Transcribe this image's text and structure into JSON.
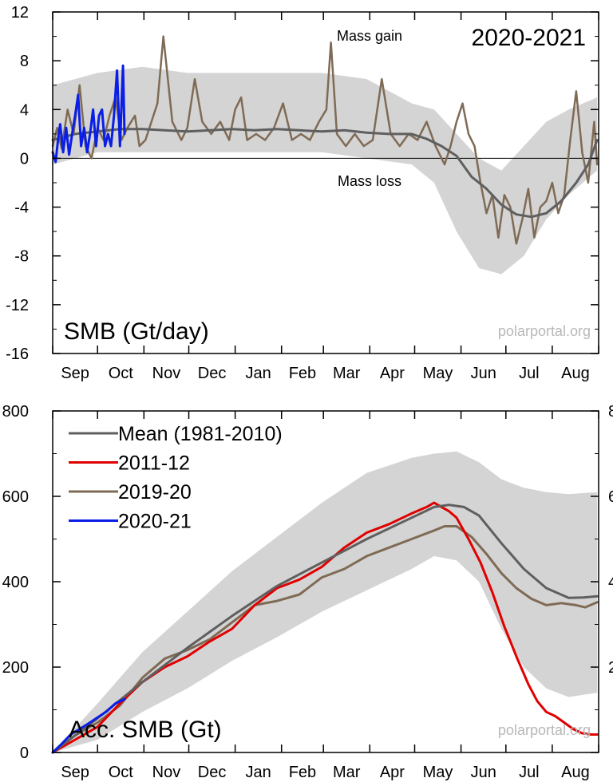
{
  "chart_data": [
    {
      "type": "line",
      "title": "2020-2021",
      "ylabel": "SMB (Gt/day)",
      "watermark": "polarportal.org",
      "annotations": [
        "Mass gain",
        "Mass loss"
      ],
      "ylim": [
        -16,
        12
      ],
      "yticks": [
        12,
        8,
        4,
        0,
        -4,
        -8,
        -12,
        -16
      ],
      "yticklabels": [
        "12",
        "8",
        "4",
        "0",
        "-4",
        "-8",
        "-12",
        "-16"
      ],
      "months": [
        "Sep",
        "Oct",
        "Nov",
        "Dec",
        "Jan",
        "Feb",
        "Mar",
        "Apr",
        "May",
        "Jun",
        "Jul",
        "Aug"
      ],
      "grid": false,
      "colors": {
        "mean": "#5f5f5f",
        "y2019": "#7f6b55",
        "y2020": "#0a1ee6",
        "band": "#d4d4d4"
      },
      "band": {
        "x": [
          0,
          30,
          60,
          90,
          120,
          150,
          180,
          210,
          240,
          255,
          270,
          285,
          300,
          315,
          330,
          345,
          364
        ],
        "lower": [
          -0.5,
          0.5,
          0.5,
          0.5,
          0.5,
          0.5,
          0.5,
          0,
          -0.5,
          -2,
          -6,
          -9,
          -9.5,
          -8,
          -5,
          -3,
          -1
        ],
        "upper": [
          6,
          7,
          7.5,
          7,
          7,
          7,
          7,
          6.5,
          4.5,
          4,
          2,
          0,
          -1,
          1,
          3,
          4,
          5
        ]
      },
      "series": [
        {
          "name": "Mean (1981-2010)",
          "x": [
            0,
            15,
            30,
            45,
            60,
            75,
            90,
            105,
            120,
            135,
            150,
            165,
            180,
            195,
            210,
            225,
            240,
            250,
            260,
            270,
            280,
            290,
            300,
            310,
            320,
            330,
            340,
            350,
            358,
            364
          ],
          "y": [
            1.5,
            2.0,
            2.2,
            2.4,
            2.4,
            2.3,
            2.2,
            2.3,
            2.4,
            2.3,
            2.4,
            2.3,
            2.2,
            2.3,
            2.1,
            2.0,
            2.0,
            1.6,
            1.0,
            0.2,
            -1.5,
            -2.5,
            -3.8,
            -4.6,
            -4.8,
            -4.5,
            -3.5,
            -2.0,
            -0.5,
            1.5
          ]
        },
        {
          "name": "2019-20",
          "x": [
            0,
            3,
            6,
            10,
            14,
            18,
            22,
            26,
            30,
            34,
            38,
            42,
            46,
            50,
            55,
            58,
            62,
            66,
            70,
            74,
            80,
            86,
            90,
            95,
            100,
            106,
            112,
            118,
            122,
            126,
            130,
            136,
            142,
            148,
            154,
            160,
            166,
            172,
            178,
            183,
            186,
            190,
            196,
            202,
            208,
            214,
            220,
            226,
            232,
            238,
            244,
            250,
            256,
            262,
            266,
            270,
            274,
            278,
            282,
            286,
            290,
            294,
            298,
            302,
            306,
            310,
            314,
            318,
            322,
            326,
            330,
            334,
            338,
            342,
            346,
            350,
            354,
            358,
            362,
            364
          ],
          "y": [
            1.0,
            2.5,
            0.8,
            4.0,
            2.0,
            6.0,
            1.0,
            0.0,
            2.5,
            1.5,
            3.5,
            5.0,
            1.5,
            2.5,
            3.5,
            1.0,
            1.5,
            3.0,
            4.5,
            10.0,
            3.0,
            1.5,
            2.5,
            6.5,
            3.0,
            2.0,
            3.0,
            1.5,
            4.0,
            5.0,
            1.5,
            2.0,
            1.5,
            2.5,
            4.5,
            1.5,
            2.0,
            1.5,
            3.0,
            4.0,
            9.5,
            2.0,
            1.0,
            2.0,
            1.0,
            1.5,
            6.5,
            2.0,
            1.0,
            2.0,
            1.5,
            3.0,
            1.0,
            -0.5,
            1.0,
            3.0,
            4.5,
            2.0,
            1.0,
            -2.0,
            -4.5,
            -3.0,
            -6.5,
            -3.0,
            -4.0,
            -7.0,
            -5.0,
            -2.5,
            -6.5,
            -4.0,
            -3.5,
            -2.0,
            -4.5,
            -3.0,
            1.5,
            5.5,
            0.5,
            -2.0,
            3.0,
            -0.5
          ]
        },
        {
          "name": "2020-21",
          "x": [
            0,
            2,
            4,
            5,
            7,
            9,
            11,
            13,
            15,
            17,
            19,
            21,
            23,
            25,
            27,
            29,
            31,
            33,
            35,
            37,
            39,
            41,
            43,
            45,
            47,
            48
          ],
          "y": [
            0.5,
            -0.3,
            2.0,
            2.8,
            0.5,
            2.5,
            0.3,
            2.0,
            3.5,
            5.2,
            1.0,
            2.5,
            0.5,
            2.0,
            4.0,
            1.0,
            3.5,
            4.0,
            1.0,
            2.0,
            1.0,
            3.5,
            7.2,
            1.0,
            7.6,
            2.0
          ]
        }
      ]
    },
    {
      "type": "line",
      "ylabel": "Acc. SMB (Gt)",
      "watermark": "polarportal.org",
      "ylim": [
        0,
        800
      ],
      "yticks": [
        800,
        600,
        400,
        200,
        0
      ],
      "yticklabels": [
        "800",
        "600",
        "400",
        "200",
        "0"
      ],
      "right_axis_partial_labels": [
        "8",
        "6",
        "4",
        "2"
      ],
      "months": [
        "Sep",
        "Oct",
        "Nov",
        "Dec",
        "Jan",
        "Feb",
        "Mar",
        "Apr",
        "May",
        "Jun",
        "Jul",
        "Aug"
      ],
      "legend_position": "top-left",
      "grid": false,
      "colors": {
        "mean": "#5f5f5f",
        "y2011": "#e00000",
        "y2019": "#7f6b55",
        "y2020": "#0a1ee6",
        "band": "#d4d4d4"
      },
      "band": {
        "x": [
          0,
          30,
          60,
          90,
          120,
          150,
          180,
          210,
          240,
          255,
          270,
          285,
          300,
          315,
          330,
          345,
          364
        ],
        "lower": [
          0,
          30,
          95,
          150,
          215,
          270,
          330,
          380,
          430,
          460,
          450,
          400,
          290,
          200,
          150,
          130,
          140
        ],
        "upper": [
          0,
          115,
          235,
          330,
          425,
          505,
          585,
          655,
          690,
          700,
          705,
          680,
          640,
          620,
          610,
          605,
          610
        ]
      },
      "series": [
        {
          "name": "Mean (1981-2010)",
          "x": [
            0,
            30,
            60,
            90,
            120,
            150,
            180,
            210,
            240,
            255,
            265,
            275,
            285,
            300,
            315,
            330,
            345,
            355,
            364
          ],
          "y": [
            0,
            80,
            165,
            245,
            320,
            390,
            445,
            500,
            550,
            575,
            580,
            575,
            555,
            490,
            430,
            385,
            362,
            363,
            366
          ]
        },
        {
          "name": "2011-12",
          "x": [
            0,
            15,
            30,
            45,
            60,
            75,
            90,
            105,
            120,
            135,
            150,
            165,
            180,
            195,
            210,
            225,
            240,
            250,
            255,
            260,
            265,
            270,
            278,
            286,
            294,
            302,
            310,
            318,
            324,
            330,
            336,
            342,
            348,
            354,
            360,
            364
          ],
          "y": [
            0,
            30,
            60,
            115,
            165,
            200,
            225,
            260,
            290,
            345,
            385,
            405,
            435,
            480,
            515,
            535,
            560,
            575,
            585,
            575,
            565,
            550,
            500,
            445,
            375,
            295,
            225,
            160,
            120,
            95,
            85,
            70,
            55,
            45,
            42,
            42
          ]
        },
        {
          "name": "2019-20",
          "x": [
            0,
            15,
            30,
            45,
            60,
            75,
            90,
            105,
            120,
            135,
            150,
            165,
            180,
            195,
            210,
            225,
            240,
            255,
            262,
            270,
            280,
            290,
            300,
            310,
            320,
            330,
            340,
            350,
            356,
            364
          ],
          "y": [
            0,
            40,
            70,
            110,
            175,
            220,
            240,
            265,
            305,
            345,
            355,
            370,
            410,
            430,
            460,
            480,
            500,
            520,
            530,
            530,
            505,
            465,
            420,
            385,
            360,
            345,
            350,
            345,
            340,
            352
          ]
        },
        {
          "name": "2020-21",
          "x": [
            0,
            6,
            12,
            18,
            24,
            30,
            36,
            42,
            48
          ],
          "y": [
            0,
            20,
            42,
            55,
            68,
            82,
            96,
            115,
            125
          ]
        }
      ]
    }
  ]
}
